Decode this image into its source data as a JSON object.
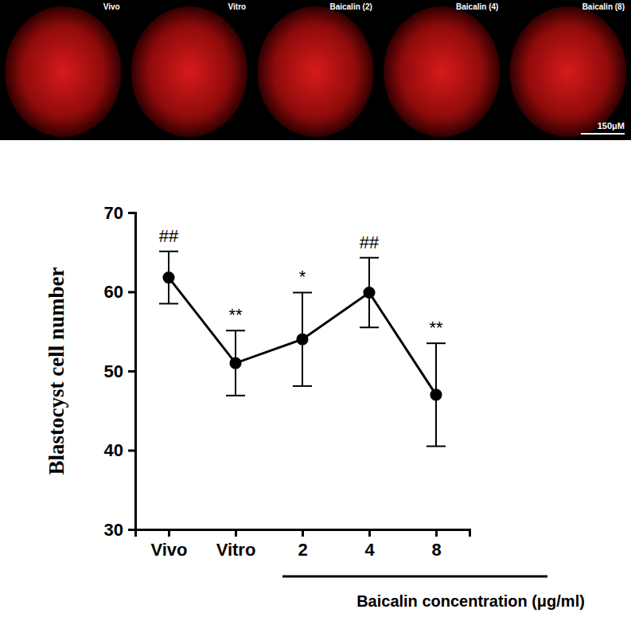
{
  "chart_data": {
    "type": "line",
    "x_label": "Baicalin concentration (μg/ml)",
    "y_label": "Blastocyst cell number",
    "categories": [
      "Vivo",
      "Vitro",
      "2",
      "4",
      "8"
    ],
    "values": [
      61.8,
      51.0,
      54.0,
      59.9,
      47.0
    ],
    "errors": [
      3.3,
      4.1,
      5.9,
      4.4,
      6.5
    ],
    "significance": [
      "##",
      "**",
      "*",
      "##",
      "**"
    ],
    "color": "#000000",
    "marker": "circle",
    "line_style": "solid",
    "ylim": [
      30,
      70
    ],
    "yticks": [
      30,
      40,
      50,
      60,
      70
    ],
    "grid": false,
    "image_labels": [
      "Vivo",
      "Vitro",
      "Baicalin (2)",
      "Baicalin (4)",
      "Baicalin (8)"
    ],
    "scale_bar_label": "150μM"
  }
}
